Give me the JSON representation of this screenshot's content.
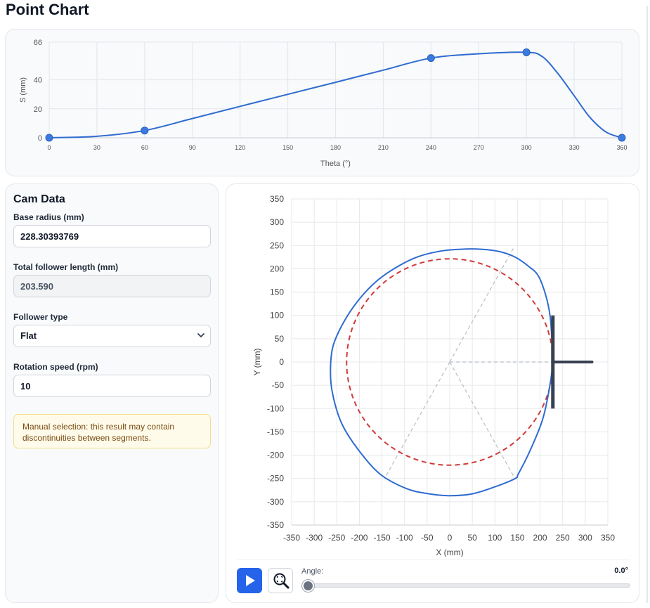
{
  "page": {
    "title": "Point Chart"
  },
  "cam_data": {
    "heading": "Cam Data",
    "base_radius": {
      "label": "Base radius (mm)",
      "value": "228.30393769"
    },
    "follower_length": {
      "label": "Total follower length (mm)",
      "value": "203.590"
    },
    "follower_type": {
      "label": "Follower type",
      "value": "Flat",
      "options": [
        "Flat"
      ]
    },
    "rotation_speed": {
      "label": "Rotation speed (rpm)",
      "value": "10"
    },
    "notice": "Manual selection: this result may contain discontinuities between segments."
  },
  "animation": {
    "angle_label": "Angle:",
    "angle_value": "0.0°",
    "angle_fraction": 0,
    "play_icon": "play-icon",
    "zoom_icon": "zoom-reset-icon"
  },
  "colors": {
    "accent": "#2563eb",
    "curve": "#2f6bd0",
    "base_circle": "#d03a3a",
    "follower": "#374151",
    "notice_bg": "#fffbea"
  },
  "chart_data": [
    {
      "type": "line",
      "xlabel": "Theta (°)",
      "ylabel": "S (mm)",
      "xlim": [
        0,
        360
      ],
      "ylim": [
        0,
        66
      ],
      "xticks": [
        0,
        30,
        60,
        90,
        120,
        150,
        180,
        210,
        240,
        270,
        300,
        330,
        360
      ],
      "yticks": [
        0,
        20,
        40,
        66
      ],
      "grid": true,
      "control_points": {
        "x": [
          0,
          60,
          240,
          300,
          360
        ],
        "y": [
          0,
          5,
          55,
          59,
          0
        ]
      },
      "series": [
        {
          "x": [
            0,
            30,
            60,
            90,
            120,
            150,
            180,
            210,
            240,
            270,
            300,
            310,
            320,
            330,
            340,
            350,
            360
          ],
          "y": [
            0,
            1,
            5,
            13.3,
            21.7,
            30,
            38.3,
            46.7,
            55,
            58,
            59,
            56,
            44,
            29,
            14,
            4,
            0
          ]
        }
      ]
    },
    {
      "type": "line",
      "xlabel": "X (mm)",
      "ylabel": "Y (mm)",
      "xlim": [
        -350,
        350
      ],
      "ylim": [
        -350,
        350
      ],
      "xticks": [
        -350,
        -300,
        -250,
        -200,
        -150,
        -100,
        -50,
        0,
        50,
        100,
        150,
        200,
        250,
        300,
        350
      ],
      "yticks": [
        -350,
        -300,
        -250,
        -200,
        -150,
        -100,
        -50,
        0,
        50,
        100,
        150,
        200,
        250,
        300,
        350
      ],
      "grid": true,
      "base_radius": 228.3,
      "follower": {
        "face_x": 228.3,
        "face_half_length": 100,
        "stem_end_x": 315
      },
      "segment_rays_deg": [
        60,
        240,
        300
      ],
      "profile": {
        "x": [
          228,
          226,
          222,
          212,
          196,
          175,
          145,
          110,
          70,
          25,
          -20,
          -70,
          -115,
          -160,
          -200,
          -235,
          -258,
          -264,
          -260,
          -240,
          -205,
          -155,
          -95,
          -45,
          0,
          50,
          100,
          145,
          152,
          178,
          205,
          220,
          228
        ],
        "y": [
          0,
          50,
          100,
          145,
          185,
          205,
          225,
          237,
          242,
          242,
          238,
          226,
          205,
          175,
          135,
          85,
          35,
          -15,
          -65,
          -130,
          -185,
          -240,
          -272,
          -283,
          -287,
          -283,
          -268,
          -250,
          -240,
          -190,
          -125,
          -60,
          0
        ]
      }
    }
  ]
}
